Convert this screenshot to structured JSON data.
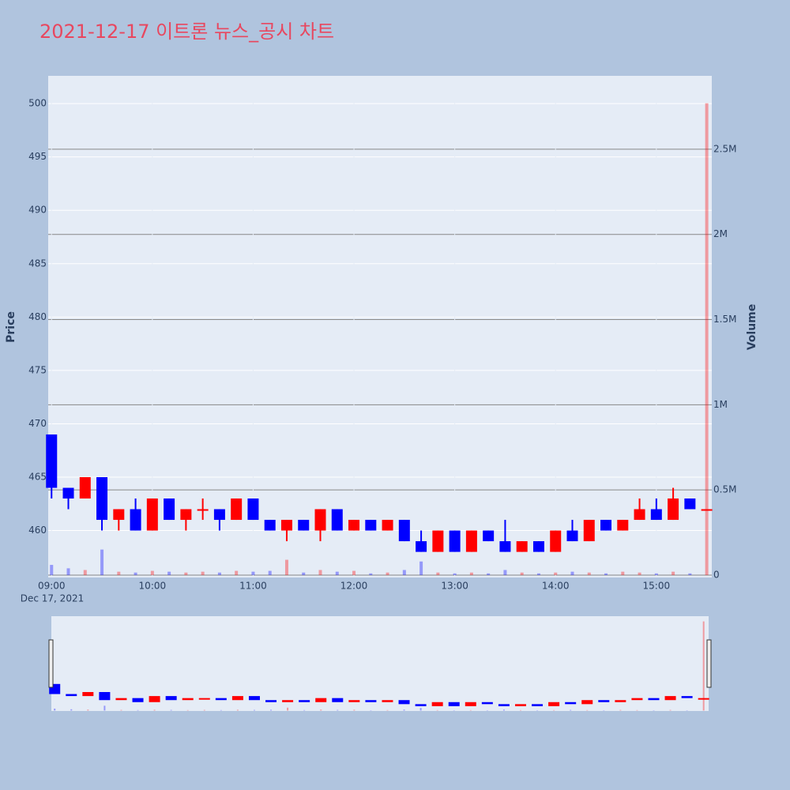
{
  "chart_data": {
    "type": "candlestick",
    "title": "2021-12-17 이트론 뉴스_공시 차트",
    "y_title": "Price",
    "y2_title": "Volume",
    "x_date_label": "Dec 17, 2021",
    "increasing_color": "#ff0000",
    "decreasing_color": "#0000ff",
    "x": [
      "09:00",
      "09:10",
      "09:20",
      "09:30",
      "09:40",
      "09:50",
      "10:00",
      "10:10",
      "10:20",
      "10:30",
      "10:40",
      "10:50",
      "11:00",
      "11:10",
      "11:20",
      "11:30",
      "11:40",
      "11:50",
      "12:00",
      "12:10",
      "12:20",
      "12:30",
      "12:40",
      "12:50",
      "13:00",
      "13:10",
      "13:20",
      "13:30",
      "13:40",
      "13:50",
      "14:00",
      "14:10",
      "14:20",
      "14:30",
      "14:40",
      "14:50",
      "15:00",
      "15:10",
      "15:20",
      "15:30"
    ],
    "open": [
      469,
      464,
      463,
      465,
      461,
      462,
      460,
      463,
      461,
      462,
      462,
      461,
      463,
      461,
      460,
      461,
      460,
      462,
      460,
      461,
      460,
      461,
      459,
      458,
      460,
      458,
      460,
      459,
      458,
      459,
      458,
      460,
      459,
      461,
      460,
      461,
      462,
      461,
      463,
      462
    ],
    "high": [
      469,
      464,
      465,
      465,
      462,
      463,
      463,
      463,
      462,
      463,
      462,
      463,
      463,
      461,
      461,
      461,
      462,
      462,
      461,
      461,
      461,
      461,
      460,
      460,
      460,
      460,
      460,
      461,
      459,
      459,
      460,
      461,
      461,
      461,
      461,
      463,
      463,
      464,
      463,
      462
    ],
    "low": [
      463,
      462,
      463,
      460,
      460,
      460,
      460,
      461,
      460,
      461,
      460,
      461,
      461,
      460,
      459,
      460,
      459,
      460,
      460,
      460,
      460,
      459,
      458,
      458,
      458,
      458,
      459,
      458,
      458,
      458,
      458,
      459,
      459,
      460,
      460,
      461,
      461,
      461,
      462,
      462
    ],
    "close": [
      464,
      463,
      465,
      461,
      462,
      460,
      463,
      461,
      462,
      462,
      461,
      463,
      461,
      460,
      461,
      460,
      462,
      460,
      461,
      460,
      461,
      459,
      458,
      460,
      458,
      460,
      459,
      458,
      459,
      458,
      460,
      459,
      461,
      460,
      461,
      462,
      461,
      463,
      462,
      462
    ],
    "volume": [
      60000,
      40000,
      30000,
      150000,
      20000,
      15000,
      25000,
      20000,
      15000,
      20000,
      15000,
      25000,
      20000,
      25000,
      90000,
      15000,
      30000,
      20000,
      25000,
      10000,
      15000,
      30000,
      80000,
      15000,
      10000,
      15000,
      10000,
      30000,
      15000,
      10000,
      15000,
      20000,
      15000,
      10000,
      20000,
      15000,
      10000,
      20000,
      10000,
      2770000
    ],
    "xlim": [
      "08:58",
      "15:33"
    ],
    "xticks": [
      "09:00",
      "10:00",
      "11:00",
      "12:00",
      "13:00",
      "14:00",
      "15:00"
    ],
    "ylim": [
      455.6,
      502.6
    ],
    "yticks": [
      460,
      465,
      470,
      475,
      480,
      485,
      490,
      495,
      500
    ],
    "y2lim": [
      -14000,
      2931000
    ],
    "y2ticks": [
      0,
      {
        "value": 500000,
        "label": "0.5M"
      },
      {
        "value": 1000000,
        "label": "1M"
      },
      {
        "value": 1500000,
        "label": "1.5M"
      },
      {
        "value": 2000000,
        "label": "2M"
      },
      {
        "value": 2500000,
        "label": "2.5M"
      }
    ]
  }
}
